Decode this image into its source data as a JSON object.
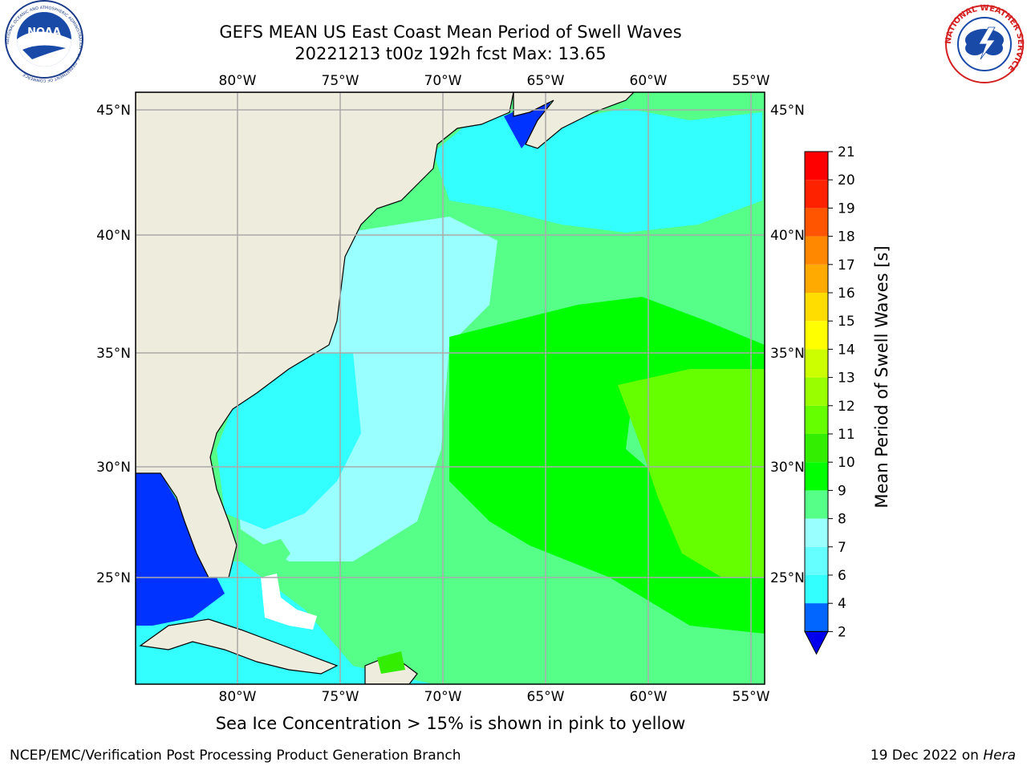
{
  "title_line1": "GEFS MEAN US East Coast Mean Period of Swell Waves",
  "title_line2": "20221213 t00z 192h fcst   Max: 13.65",
  "lon_labels": [
    "80°W",
    "75°W",
    "70°W",
    "65°W",
    "60°W",
    "55°W"
  ],
  "lat_labels": [
    "45°N",
    "40°N",
    "35°N",
    "30°N",
    "25°N"
  ],
  "colorbar": {
    "label": "Mean Period of Swell Waves [s]",
    "ticks": [
      "2",
      "4",
      "6",
      "7",
      "8",
      "9",
      "10",
      "11",
      "12",
      "13",
      "14",
      "15",
      "16",
      "17",
      "18",
      "19",
      "20",
      "21"
    ],
    "colors": [
      "#0066ff",
      "#00ffff",
      "#33ffff",
      "#66ffff",
      "#99ffff",
      "#55ff88",
      "#00ff00",
      "#33ee00",
      "#66ff00",
      "#99ff00",
      "#ccff00",
      "#ffff00",
      "#ffdd00",
      "#ffaa00",
      "#ff8800",
      "#ff5500",
      "#ff2200",
      "#ff0000"
    ],
    "extend_color": "#0000ee"
  },
  "map_colors": {
    "land": "#eeecdc",
    "low": "#33ffff",
    "light": "#99ffff",
    "mid": "#55ff88",
    "green": "#00ff00",
    "yellowgreen": "#66ff00",
    "deepblue": "#0033ff",
    "blue": "#0099ff",
    "grid": "#aaaaaa"
  },
  "caption": "Sea Ice Concentration > 15% is shown in pink to yellow",
  "footer_left": "NCEP/EMC/Verification Post Processing Product Generation Branch",
  "footer_date": "19 Dec 2022 on ",
  "footer_host": "Hera",
  "noaa_logo_text": "NOAA",
  "noaa_ring_text": "NATIONAL OCEANIC AND ATMOSPHERIC ADMINISTRATION · U.S. DEPARTMENT OF COMMERCE",
  "nws_ring_text": "NATIONAL WEATHER SERVICE"
}
